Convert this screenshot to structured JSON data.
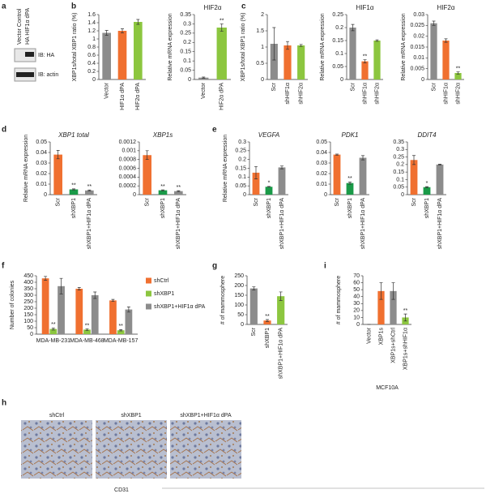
{
  "panel_labels": [
    "a",
    "b",
    "c",
    "d",
    "e",
    "f",
    "g",
    "i",
    "h"
  ],
  "blot": {
    "lanes": [
      "Vector Control",
      "HA HIF1α dPA"
    ],
    "rows": [
      "IB: HA",
      "IB: actin"
    ]
  },
  "histology": {
    "conditions": [
      "shCtrl",
      "shXBP1",
      "shXBP1+HIF1α dPA"
    ],
    "stain": "CD31"
  },
  "chart_data": [
    {
      "type": "bar",
      "ylabel": "XBP1s/total XBP1 ratio (%)",
      "categories": [
        "Vector",
        "HIF1α dPA",
        "HIF2α dPA"
      ],
      "values": [
        1.15,
        1.2,
        1.42
      ],
      "errors": [
        0.06,
        0.05,
        0.06
      ],
      "colors": [
        "#8c8c8c",
        "#f07030",
        "#8cc63f"
      ],
      "ylim": [
        0,
        1.6
      ],
      "yticks": [
        0,
        0.2,
        0.4,
        0.6,
        0.8,
        1,
        1.2,
        1.4,
        1.6
      ]
    },
    {
      "type": "bar",
      "title": "HIF2α",
      "ylabel": "Relative mRNA expression",
      "categories": [
        "Vector",
        "HIF2α dPA"
      ],
      "values": [
        0.01,
        0.28
      ],
      "errors": [
        0.003,
        0.02
      ],
      "colors": [
        "#8c8c8c",
        "#8cc63f"
      ],
      "significance": [
        null,
        "**"
      ],
      "ylim": [
        0,
        0.35
      ],
      "yticks": [
        0,
        0.05,
        0.1,
        0.15,
        0.2,
        0.25,
        0.3,
        0.35
      ]
    },
    {
      "type": "bar",
      "ylabel": "XBP1s/total XBP1 ratio (%)",
      "categories": [
        "Scr",
        "shHIF1α",
        "shHIF2α"
      ],
      "values": [
        1.1,
        1.05,
        1.05
      ],
      "errors": [
        0.5,
        0.12,
        0.03
      ],
      "colors": [
        "#8c8c8c",
        "#f07030",
        "#8cc63f"
      ],
      "ylim": [
        0,
        2
      ],
      "yticks": [
        0,
        0.5,
        1,
        1.5,
        2
      ]
    },
    {
      "type": "bar",
      "title": "HIF1α",
      "ylabel": "Relative mRNA expression",
      "categories": [
        "Scr",
        "shHIF1α",
        "shHIF2α"
      ],
      "values": [
        0.2,
        0.07,
        0.15
      ],
      "errors": [
        0.012,
        0.006,
        0.003
      ],
      "colors": [
        "#8c8c8c",
        "#f07030",
        "#8cc63f"
      ],
      "significance": [
        null,
        "**",
        null
      ],
      "ylim": [
        0,
        0.25
      ],
      "yticks": [
        0,
        0.05,
        0.1,
        0.15,
        0.2,
        0.25
      ]
    },
    {
      "type": "bar",
      "title": "HIF2α",
      "ylabel": "Relative mRNA expression",
      "categories": [
        "Scr",
        "shHIF1α",
        "shHIF2α"
      ],
      "values": [
        0.026,
        0.018,
        0.003
      ],
      "errors": [
        0.001,
        0.0008,
        0.0005
      ],
      "colors": [
        "#8c8c8c",
        "#f07030",
        "#8cc63f"
      ],
      "significance": [
        null,
        null,
        "**"
      ],
      "ylim": [
        0,
        0.03
      ],
      "yticks": [
        0,
        0.005,
        0.01,
        0.015,
        0.02,
        0.025,
        0.03
      ]
    },
    {
      "type": "bar",
      "title": "XBP1 total",
      "ylabel": "Relative mRNA expression",
      "categories": [
        "Scr",
        "shXBP1",
        "shXBP1+HIF1α dPA"
      ],
      "values": [
        0.038,
        0.005,
        0.004
      ],
      "errors": [
        0.004,
        0.0005,
        0.0004
      ],
      "colors": [
        "#f07030",
        "#1a9a48",
        "#8c8c8c"
      ],
      "significance": [
        null,
        "**",
        "**"
      ],
      "ylim": [
        0,
        0.05
      ],
      "yticks": [
        0,
        0.01,
        0.02,
        0.03,
        0.04,
        0.05
      ]
    },
    {
      "type": "bar",
      "title": "XBP1s",
      "categories": [
        "Scr",
        "shXBP1",
        "shXBP1+HIF1α dPA"
      ],
      "values": [
        0.0009,
        0.0001,
        8e-05
      ],
      "errors": [
        0.0001,
        1e-05,
        1e-05
      ],
      "colors": [
        "#f07030",
        "#1a9a48",
        "#8c8c8c"
      ],
      "significance": [
        null,
        "**",
        "**"
      ],
      "ylim": [
        0,
        0.0012
      ],
      "yticks": [
        0,
        0.0002,
        0.0004,
        0.0006,
        0.0008,
        0.001,
        0.0012
      ]
    },
    {
      "type": "bar",
      "title": "VEGFA",
      "ylabel": "Relative mRNA expression",
      "categories": [
        "Scr",
        "shXBP1",
        "shXBP1+HIF1α dPA"
      ],
      "values": [
        0.125,
        0.045,
        0.155
      ],
      "errors": [
        0.035,
        0.002,
        0.008
      ],
      "colors": [
        "#f07030",
        "#1a9a48",
        "#8c8c8c"
      ],
      "significance": [
        null,
        "*",
        null
      ],
      "ylim": [
        0,
        0.3
      ],
      "yticks": [
        0,
        0.05,
        0.1,
        0.15,
        0.2,
        0.25,
        0.3
      ]
    },
    {
      "type": "bar",
      "title": "PDK1",
      "categories": [
        "Scr",
        "shXBP1",
        "shXBP1+HIF1α dPA"
      ],
      "values": [
        0.038,
        0.011,
        0.035
      ],
      "errors": [
        0.0005,
        0.001,
        0.002
      ],
      "colors": [
        "#f07030",
        "#1a9a48",
        "#8c8c8c"
      ],
      "significance": [
        null,
        "**",
        null
      ],
      "ylim": [
        0,
        0.05
      ],
      "yticks": [
        0,
        0.01,
        0.02,
        0.03,
        0.04,
        0.05
      ]
    },
    {
      "type": "bar",
      "title": "DDIT4",
      "categories": [
        "Scr",
        "shXBP1",
        "shXBP1+HIF1α dPA"
      ],
      "values": [
        0.23,
        0.05,
        0.2
      ],
      "errors": [
        0.03,
        0.003,
        0.002
      ],
      "colors": [
        "#f07030",
        "#1a9a48",
        "#8c8c8c"
      ],
      "significance": [
        null,
        "*",
        null
      ],
      "ylim": [
        0,
        0.35
      ],
      "yticks": [
        0,
        0.05,
        0.1,
        0.15,
        0.2,
        0.25,
        0.3,
        0.35
      ]
    },
    {
      "type": "grouped-bar",
      "ylabel": "Number of colonies",
      "categories": [
        "MDA-MB-231",
        "MDA-MB-468",
        "MDA-MB-157"
      ],
      "series": [
        {
          "name": "shCtrl",
          "color": "#f07030",
          "values": [
            430,
            350,
            260
          ],
          "errors": [
            15,
            10,
            8
          ]
        },
        {
          "name": "shXBP1",
          "color": "#8cc63f",
          "values": [
            40,
            35,
            30
          ],
          "errors": [
            8,
            6,
            5
          ],
          "significance": [
            "**",
            "**",
            "**"
          ]
        },
        {
          "name": "shXBP1+HIF1α dPA",
          "color": "#8c8c8c",
          "values": [
            370,
            300,
            190
          ],
          "errors": [
            60,
            25,
            20
          ]
        }
      ],
      "ylim": [
        0,
        450
      ],
      "yticks": [
        0,
        50,
        100,
        150,
        200,
        250,
        300,
        350,
        400,
        450
      ]
    },
    {
      "type": "bar",
      "ylabel": "# of mammosphere",
      "categories": [
        "Scr",
        "shXBP1",
        "shXBP1+HIF1α dPA"
      ],
      "values": [
        185,
        20,
        145
      ],
      "errors": [
        8,
        5,
        22
      ],
      "colors": [
        "#8c8c8c",
        "#f07030",
        "#8cc63f"
      ],
      "significance": [
        null,
        "**",
        null
      ],
      "ylim": [
        0,
        250
      ],
      "yticks": [
        0,
        50,
        100,
        150,
        200,
        250
      ]
    },
    {
      "type": "bar",
      "ylabel": "# of mammosphere",
      "xlabel": "MCF10A",
      "categories": [
        "Vector",
        "XBP1s",
        "XBP1s+shCtrl",
        "XBP1s+shHIF1α"
      ],
      "values": [
        0,
        48,
        48,
        10
      ],
      "errors": [
        0,
        12,
        12,
        5
      ],
      "colors": [
        "#8c8c8c",
        "#f07030",
        "#8c8c8c",
        "#8cc63f"
      ],
      "significance": [
        null,
        null,
        null,
        "**"
      ],
      "ylim": [
        0,
        70
      ],
      "yticks": [
        0,
        10,
        20,
        30,
        40,
        50,
        60,
        70
      ]
    }
  ]
}
